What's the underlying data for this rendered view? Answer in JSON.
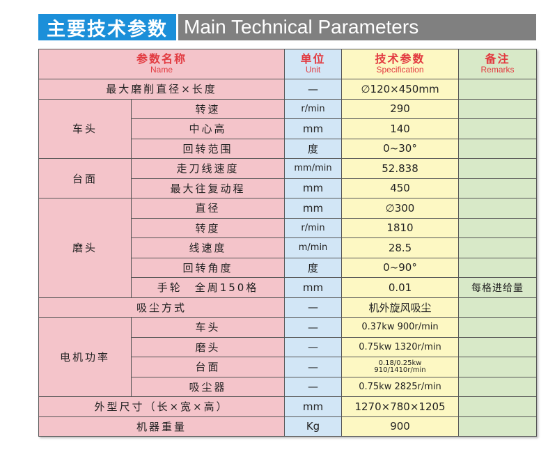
{
  "title": {
    "cn": "主要技术参数",
    "en": "Main Technical Parameters"
  },
  "header": {
    "name_cn": "参数名称",
    "name_en": "Name",
    "unit_cn": "单位",
    "unit_en": "Unit",
    "spec_cn": "技术参数",
    "spec_en": "Specification",
    "remarks_cn": "备注",
    "remarks_en": "Remarks"
  },
  "rows": [
    {
      "group": "",
      "name": "最大磨削直径×长度",
      "unit": "—",
      "spec": "∅120×450mm",
      "remarks": "",
      "full": true
    },
    {
      "group": "车头",
      "span": 3,
      "name": "转速",
      "unit": "r/min",
      "spec": "290",
      "remarks": ""
    },
    {
      "name": "中心高",
      "unit": "mm",
      "spec": "140",
      "remarks": ""
    },
    {
      "name": "回转范围",
      "unit": "度",
      "spec": "0~30°",
      "remarks": ""
    },
    {
      "group": "台面",
      "span": 2,
      "name": "走刀线速度",
      "unit": "mm/min",
      "spec": "52.838",
      "remarks": ""
    },
    {
      "name": "最大往复动程",
      "unit": "mm",
      "spec": "450",
      "remarks": ""
    },
    {
      "group": "磨头",
      "span": 5,
      "name": "直径",
      "unit": "mm",
      "spec": "∅300",
      "remarks": ""
    },
    {
      "name": "转度",
      "unit": "r/min",
      "spec": "1810",
      "remarks": ""
    },
    {
      "name": "线速度",
      "unit": "m/min",
      "spec": "28.5",
      "remarks": ""
    },
    {
      "name": "回转角度",
      "unit": "度",
      "spec": "0~90°",
      "remarks": ""
    },
    {
      "name": "手轮　全周150格",
      "unit": "mm",
      "spec": "0.01",
      "remarks": "每格进给量"
    },
    {
      "name": "吸尘方式",
      "unit": "—",
      "spec": "机外旋风吸尘",
      "remarks": "",
      "full": true
    },
    {
      "group": "电机功率",
      "span": 4,
      "name": "车头",
      "unit": "—",
      "spec": "0.37kw 900r/min",
      "remarks": ""
    },
    {
      "name": "磨头",
      "unit": "—",
      "spec": "0.75kw 1320r/min",
      "remarks": ""
    },
    {
      "name": "台面",
      "unit": "—",
      "spec": "0.18/0.25kw",
      "spec2": "910/1410r/min",
      "remarks": ""
    },
    {
      "name": "吸尘器",
      "unit": "—",
      "spec": "0.75kw 2825r/min",
      "remarks": ""
    },
    {
      "name": "外型尺寸（长×宽×高）",
      "unit": "mm",
      "spec": "1270×780×1205",
      "remarks": "",
      "full": true
    },
    {
      "name": "机器重量",
      "unit": "Kg",
      "spec": "900",
      "remarks": "",
      "full": true
    }
  ]
}
